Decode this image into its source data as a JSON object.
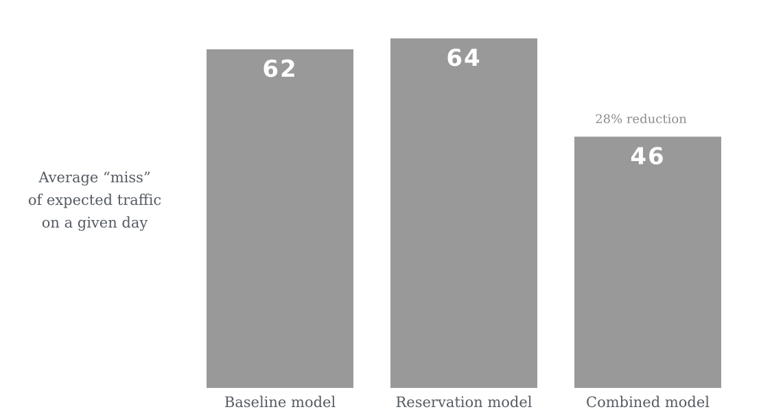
{
  "chart_data": {
    "type": "bar",
    "categories": [
      "Baseline model",
      "Reservation model",
      "Combined model"
    ],
    "values": [
      62,
      64,
      46
    ],
    "value_labels": [
      "62",
      "64",
      "46"
    ],
    "ylabel_lines": [
      "Average “miss”",
      "of expected traffic",
      "on a given day"
    ],
    "annotations": [
      {
        "category": "Combined model",
        "text": "28% reduction"
      }
    ],
    "ylim": [
      0,
      64
    ],
    "grid": false,
    "bar_color": "#999999",
    "value_label_color": "#ffffff",
    "text_color": "#555b63",
    "annotation_color": "#8c8c8c"
  }
}
